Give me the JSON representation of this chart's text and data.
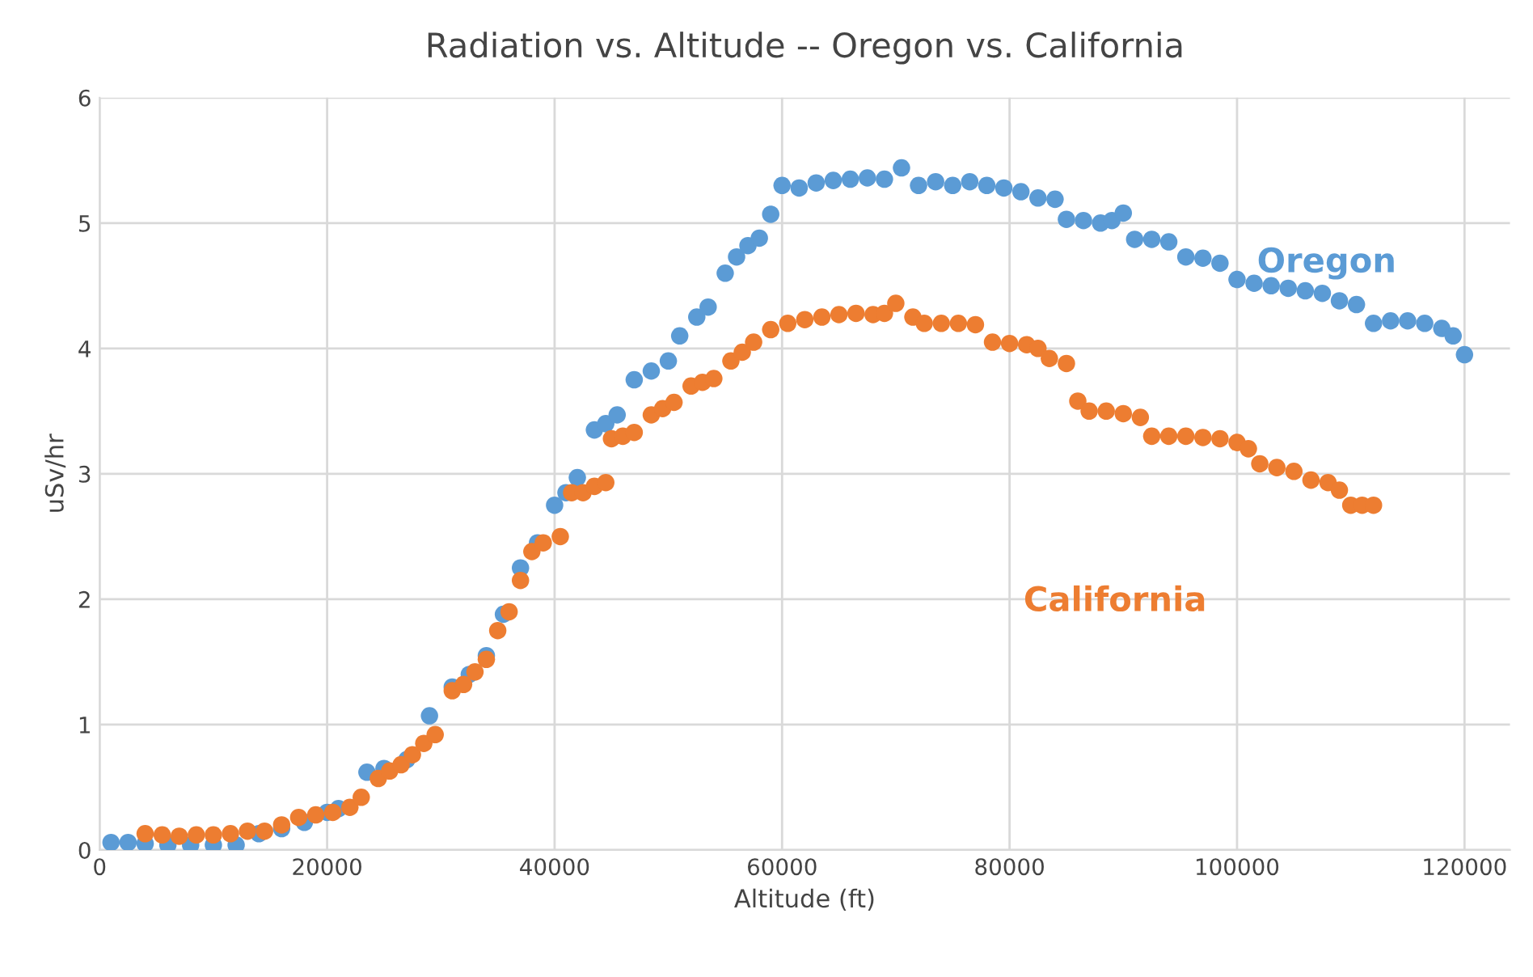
{
  "chart_data": {
    "type": "scatter",
    "title": "Radiation vs. Altitude -- Oregon vs. California",
    "xlabel": "Altitude (ft)",
    "ylabel": "uSv/hr",
    "xlim": [
      0,
      124000
    ],
    "xticks": [
      0,
      20000,
      40000,
      60000,
      80000,
      100000,
      120000
    ],
    "ylim": [
      0,
      6
    ],
    "yticks": [
      0,
      1,
      2,
      3,
      4,
      5,
      6
    ],
    "grid": true,
    "marker": "circle",
    "series": [
      {
        "name": "Oregon",
        "color": "#5b9bd5",
        "x": [
          1000,
          2500,
          4000,
          6000,
          8000,
          10000,
          12000,
          14000,
          16000,
          18000,
          20000,
          21000,
          23500,
          25000,
          27000,
          29000,
          31000,
          32500,
          34000,
          35500,
          37000,
          38500,
          40000,
          41000,
          42000,
          43500,
          44500,
          45500,
          47000,
          48500,
          50000,
          51000,
          52500,
          53500,
          55000,
          56000,
          57000,
          58000,
          59000,
          60000,
          61500,
          63000,
          64500,
          66000,
          67500,
          69000,
          70500,
          72000,
          73500,
          75000,
          76500,
          78000,
          79500,
          81000,
          82500,
          84000,
          85000,
          86500,
          88000,
          89000,
          90000,
          91000,
          92500,
          94000,
          95500,
          97000,
          98500,
          100000,
          101500,
          103000,
          104500,
          106000,
          107500,
          109000,
          110500,
          112000,
          113500,
          115000,
          116500,
          118000,
          119000,
          120000
        ],
        "values": [
          0.06,
          0.06,
          0.05,
          0.04,
          0.04,
          0.04,
          0.04,
          0.13,
          0.17,
          0.22,
          0.3,
          0.33,
          0.62,
          0.65,
          0.72,
          1.07,
          1.3,
          1.4,
          1.55,
          1.88,
          2.25,
          2.45,
          2.75,
          2.85,
          2.97,
          3.35,
          3.4,
          3.47,
          3.75,
          3.82,
          3.9,
          4.1,
          4.25,
          4.33,
          4.6,
          4.73,
          4.82,
          4.88,
          5.07,
          5.3,
          5.28,
          5.32,
          5.34,
          5.35,
          5.36,
          5.35,
          5.44,
          5.3,
          5.33,
          5.3,
          5.33,
          5.3,
          5.28,
          5.25,
          5.2,
          5.19,
          5.03,
          5.02,
          5.0,
          5.02,
          5.08,
          4.87,
          4.87,
          4.85,
          4.73,
          4.72,
          4.68,
          4.55,
          4.52,
          4.5,
          4.48,
          4.46,
          4.44,
          4.38,
          4.35,
          4.2,
          4.22,
          4.22,
          4.2,
          4.16,
          4.1,
          3.95
        ]
      },
      {
        "name": "California",
        "color": "#ed7d31",
        "x": [
          4000,
          5500,
          7000,
          8500,
          10000,
          11500,
          13000,
          14500,
          16000,
          17500,
          19000,
          20500,
          22000,
          23000,
          24500,
          25500,
          26500,
          27500,
          28500,
          29500,
          31000,
          32000,
          33000,
          34000,
          35000,
          36000,
          37000,
          38000,
          39000,
          40500,
          41500,
          42500,
          43500,
          44500,
          45000,
          46000,
          47000,
          48500,
          49500,
          50500,
          52000,
          53000,
          54000,
          55500,
          56500,
          57500,
          59000,
          60500,
          62000,
          63500,
          65000,
          66500,
          68000,
          69000,
          70000,
          71500,
          72500,
          74000,
          75500,
          77000,
          78500,
          80000,
          81500,
          82500,
          83500,
          85000,
          86000,
          87000,
          88500,
          90000,
          91500,
          92500,
          94000,
          95500,
          97000,
          98500,
          100000,
          101000,
          102000,
          103500,
          105000,
          106500,
          108000,
          109000,
          110000,
          111000,
          112000
        ],
        "values": [
          0.13,
          0.12,
          0.11,
          0.12,
          0.12,
          0.13,
          0.15,
          0.15,
          0.2,
          0.26,
          0.28,
          0.3,
          0.34,
          0.42,
          0.57,
          0.63,
          0.68,
          0.76,
          0.85,
          0.92,
          1.27,
          1.32,
          1.42,
          1.52,
          1.75,
          1.9,
          2.15,
          2.38,
          2.45,
          2.5,
          2.85,
          2.85,
          2.9,
          2.93,
          3.28,
          3.3,
          3.33,
          3.47,
          3.52,
          3.57,
          3.7,
          3.73,
          3.76,
          3.9,
          3.97,
          4.05,
          4.15,
          4.2,
          4.23,
          4.25,
          4.27,
          4.28,
          4.27,
          4.28,
          4.36,
          4.25,
          4.2,
          4.2,
          4.2,
          4.19,
          4.05,
          4.04,
          4.03,
          4.0,
          3.92,
          3.88,
          3.58,
          3.5,
          3.5,
          3.48,
          3.45,
          3.3,
          3.3,
          3.3,
          3.29,
          3.28,
          3.25,
          3.2,
          3.08,
          3.05,
          3.02,
          2.95,
          2.93,
          2.87,
          2.75,
          2.75,
          2.75
        ]
      }
    ]
  }
}
